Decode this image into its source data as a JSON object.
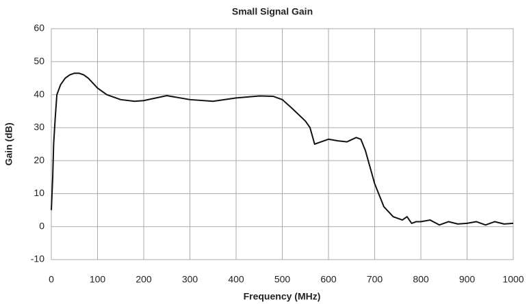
{
  "chart_data": {
    "type": "line",
    "title": "Small Signal Gain",
    "x_label": "Frequency (MHz)",
    "y_label": "Gain (dB)",
    "x": [
      0,
      3,
      5,
      8,
      12,
      20,
      30,
      40,
      50,
      60,
      70,
      80,
      100,
      120,
      150,
      180,
      200,
      250,
      300,
      350,
      400,
      450,
      480,
      500,
      520,
      550,
      560,
      570,
      580,
      600,
      620,
      640,
      660,
      670,
      680,
      700,
      720,
      740,
      760,
      770,
      780,
      790,
      800,
      820,
      840,
      860,
      880,
      900,
      920,
      940,
      960,
      980,
      1000
    ],
    "values": [
      5,
      15,
      25,
      32,
      40,
      43,
      45,
      46,
      46.5,
      46.5,
      46,
      45,
      42,
      40,
      38.5,
      38,
      38.2,
      39.7,
      38.5,
      38,
      39,
      39.6,
      39.5,
      38.5,
      36,
      32,
      30,
      25,
      25.5,
      26.5,
      26,
      25.7,
      27,
      26.5,
      23,
      13,
      6,
      3,
      2,
      3,
      1,
      1.5,
      1.5,
      2,
      0.5,
      1.5,
      0.8,
      1,
      1.5,
      0.5,
      1.5,
      0.8,
      1
    ],
    "color": "#111111",
    "xlim": [
      0,
      1000
    ],
    "xticks": [
      0,
      100,
      200,
      300,
      400,
      500,
      600,
      700,
      800,
      900,
      1000
    ],
    "ylim": [
      -10,
      60
    ],
    "yticks": [
      -10,
      0,
      10,
      20,
      30,
      40,
      50,
      60
    ],
    "grid": true
  }
}
